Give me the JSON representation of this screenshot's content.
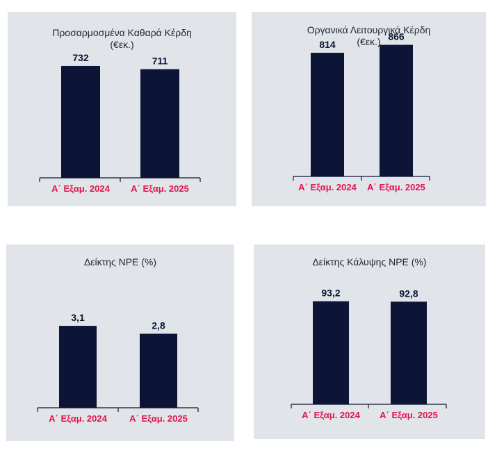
{
  "colors": {
    "bar": "#0d1536",
    "label": "#0d1536",
    "category": "#e4134f",
    "axis": "#0d1536",
    "panel": "#e1e4e8"
  },
  "chart_data": [
    {
      "type": "bar",
      "title": [
        "Προσαρμοσμένα Καθαρά Κέρδη",
        "(€εκ.)"
      ],
      "categories": [
        "Α΄ Εξαμ. 2024",
        "Α΄ Εξαμ. 2025"
      ],
      "values": [
        732,
        711
      ],
      "value_labels": [
        "732",
        "711"
      ],
      "ylim": [
        0,
        850
      ]
    },
    {
      "type": "bar",
      "title": [
        "Οργανικά Λειτουργικά Κέρδη",
        "(€εκ.)"
      ],
      "categories": [
        "Α΄ Εξαμ. 2024",
        "Α΄ Εξαμ. 2025"
      ],
      "values": [
        814,
        866
      ],
      "value_labels": [
        "814",
        "866"
      ],
      "ylim": [
        0,
        1120
      ]
    },
    {
      "type": "bar",
      "title": [
        "Δείκτης NPE (%)"
      ],
      "categories": [
        "Α΄ Εξαμ. 2024",
        "Α΄ Εξαμ. 2025"
      ],
      "values": [
        3.1,
        2.8
      ],
      "value_labels": [
        "3,1",
        "2,8"
      ],
      "ylim": [
        0,
        5.52
      ]
    },
    {
      "type": "bar",
      "title": [
        "Δείκτης Κάλυψης NPE (%)"
      ],
      "categories": [
        "Α΄ Εξαμ. 2024",
        "Α΄ Εξαμ. 2025"
      ],
      "values": [
        93.2,
        92.8
      ],
      "value_labels": [
        "93,2",
        "92,8"
      ],
      "ylim": [
        0,
        120
      ]
    }
  ]
}
